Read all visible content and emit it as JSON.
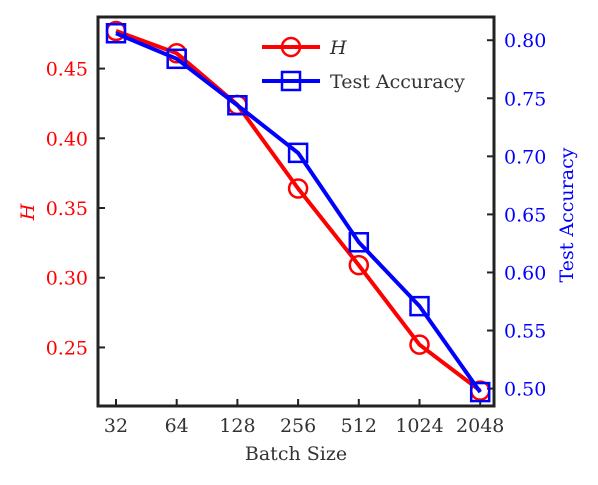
{
  "chart_data": {
    "type": "line",
    "xlabel": "Batch Size",
    "categories": [
      "32",
      "64",
      "128",
      "256",
      "512",
      "1024",
      "2048"
    ],
    "y_left": {
      "label": "H",
      "color": "#ff0000",
      "ylim": [
        0.208,
        0.487
      ],
      "ticks": [
        "0.25",
        "0.30",
        "0.35",
        "0.40",
        "0.45"
      ]
    },
    "y_right": {
      "label": "Test Accuracy",
      "color": "#0000ff",
      "ylim": [
        0.485,
        0.82
      ],
      "ticks": [
        "0.50",
        "0.55",
        "0.60",
        "0.65",
        "0.70",
        "0.75",
        "0.80"
      ]
    },
    "series": [
      {
        "name": "H",
        "axis": "left",
        "color": "#ff0000",
        "marker": "circle",
        "values": [
          0.477,
          0.461,
          0.424,
          0.364,
          0.309,
          0.252,
          0.219
        ]
      },
      {
        "name": "Test Accuracy",
        "axis": "right",
        "color": "#0000ff",
        "marker": "square",
        "values": [
          0.806,
          0.784,
          0.744,
          0.703,
          0.626,
          0.571,
          0.497
        ]
      }
    ],
    "legend": "top-center",
    "grid": false
  }
}
